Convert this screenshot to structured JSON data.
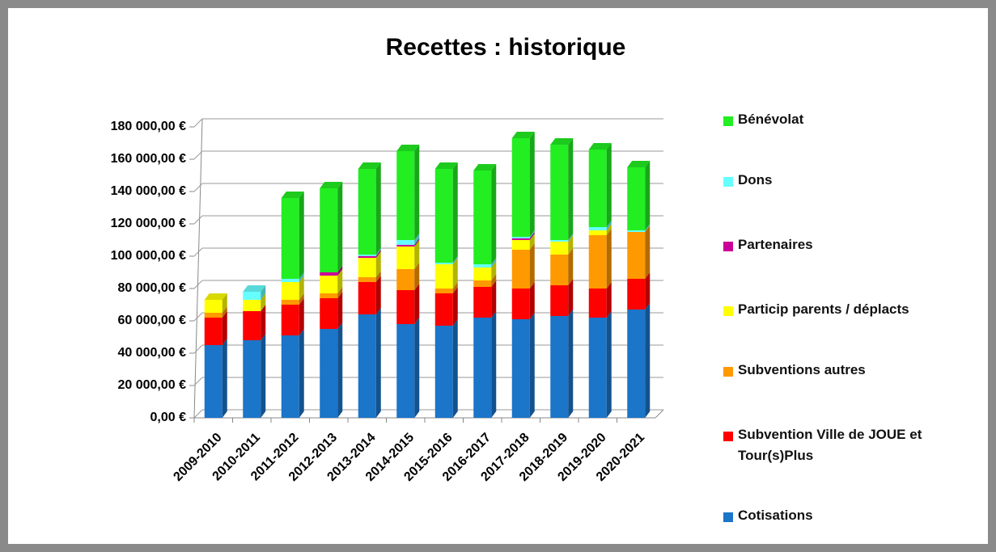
{
  "chart_data": {
    "type": "bar3d_stacked",
    "title": "Recettes : historique",
    "categories": [
      "2009-2010",
      "2010-2011",
      "2011-2012",
      "2012-2013",
      "2013-2014",
      "2014-2015",
      "2015-2016",
      "2016-2017",
      "2017-2018",
      "2018-2019",
      "2019-2020",
      "2020-2021"
    ],
    "series": [
      {
        "name": "Cotisations",
        "color": "#1b75c9",
        "values": [
          45000,
          48000,
          51000,
          55000,
          64000,
          58000,
          57000,
          62000,
          61000,
          63000,
          62000,
          67000
        ]
      },
      {
        "name": "Subvention Ville de JOUE et Tour(s)Plus",
        "color": "#ff0000",
        "values": [
          17000,
          18000,
          19000,
          19000,
          20000,
          21000,
          20000,
          19000,
          19000,
          19000,
          18000,
          19000
        ]
      },
      {
        "name": "Subventions autres",
        "color": "#ff9900",
        "values": [
          3000,
          0,
          3000,
          3000,
          3000,
          13000,
          3000,
          4000,
          24000,
          19000,
          33000,
          29000
        ]
      },
      {
        "name": "Particip parents / déplacts",
        "color": "#ffff00",
        "values": [
          8000,
          7000,
          11000,
          11000,
          12000,
          14000,
          15000,
          8000,
          6000,
          8000,
          3000,
          0
        ]
      },
      {
        "name": "Partenaires",
        "color": "#cc0099",
        "values": [
          0,
          0,
          0,
          2000,
          1000,
          1000,
          0,
          0,
          1000,
          0,
          0,
          0
        ]
      },
      {
        "name": "Dons",
        "color": "#66ffff",
        "values": [
          0,
          5000,
          2000,
          0,
          1000,
          3000,
          1000,
          2000,
          1000,
          1000,
          2000,
          1000
        ]
      },
      {
        "name": "Bénévolat",
        "color": "#22ee22",
        "values": [
          0,
          0,
          50000,
          52000,
          53000,
          55000,
          58000,
          58000,
          61000,
          59000,
          48000,
          39000
        ]
      }
    ],
    "ylim": [
      0,
      180000
    ],
    "yticks": [
      {
        "value": 0,
        "label": "0,00 €"
      },
      {
        "value": 20000,
        "label": "20 000,00 €"
      },
      {
        "value": 40000,
        "label": "40 000,00 €"
      },
      {
        "value": 60000,
        "label": "60 000,00 €"
      },
      {
        "value": 80000,
        "label": "80 000,00 €"
      },
      {
        "value": 100000,
        "label": "100 000,00 €"
      },
      {
        "value": 120000,
        "label": "120 000,00 €"
      },
      {
        "value": 140000,
        "label": "140 000,00 €"
      },
      {
        "value": 160000,
        "label": "160 000,00 €"
      },
      {
        "value": 180000,
        "label": "180 000,00 €"
      }
    ],
    "grid": true,
    "legend": "right"
  }
}
